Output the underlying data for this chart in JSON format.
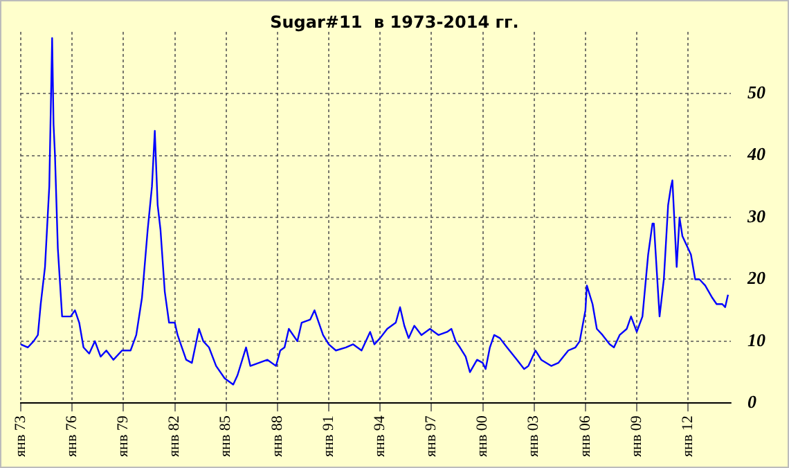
{
  "chart_data": {
    "type": "line",
    "title": "Sugar#11  в 1973-2014 гг.",
    "x": [
      "1973-01",
      "1973-06",
      "1973-10",
      "1974-01",
      "1974-03",
      "1974-06",
      "1974-09",
      "1974-11",
      "1974-12",
      "1975-01",
      "1975-03",
      "1975-06",
      "1975-09",
      "1975-12",
      "1976-03",
      "1976-06",
      "1976-09",
      "1977-01",
      "1977-05",
      "1977-09",
      "1978-01",
      "1978-06",
      "1978-12",
      "1979-06",
      "1979-10",
      "1980-02",
      "1980-06",
      "1980-09",
      "1980-11",
      "1981-01",
      "1981-03",
      "1981-06",
      "1981-09",
      "1982-01",
      "1982-03",
      "1982-06",
      "1982-09",
      "1983-01",
      "1983-06",
      "1983-09",
      "1984-01",
      "1984-06",
      "1984-12",
      "1985-06",
      "1985-09",
      "1986-03",
      "1986-06",
      "1986-12",
      "1987-06",
      "1987-12",
      "1988-03",
      "1988-06",
      "1988-09",
      "1989-03",
      "1989-06",
      "1989-12",
      "1990-03",
      "1990-09",
      "1991-01",
      "1991-06",
      "1992-01",
      "1992-06",
      "1992-12",
      "1993-06",
      "1993-09",
      "1994-01",
      "1994-06",
      "1994-12",
      "1995-03",
      "1995-06",
      "1995-09",
      "1996-01",
      "1996-06",
      "1996-12",
      "1997-06",
      "1997-12",
      "1998-03",
      "1998-06",
      "1998-09",
      "1999-01",
      "1999-04",
      "1999-09",
      "2000-01",
      "2000-03",
      "2000-06",
      "2000-09",
      "2001-01",
      "2001-06",
      "2002-01",
      "2002-06",
      "2002-09",
      "2003-02",
      "2003-06",
      "2004-01",
      "2004-06",
      "2005-01",
      "2005-06",
      "2005-09",
      "2006-01",
      "2006-02",
      "2006-06",
      "2006-09",
      "2007-01",
      "2007-06",
      "2007-09",
      "2008-01",
      "2008-06",
      "2008-09",
      "2009-01",
      "2009-05",
      "2009-09",
      "2009-12",
      "2010-01",
      "2010-05",
      "2010-08",
      "2010-11",
      "2011-01",
      "2011-02",
      "2011-05",
      "2011-07",
      "2011-09",
      "2012-01",
      "2012-03",
      "2012-06",
      "2012-09",
      "2013-01",
      "2013-06",
      "2013-09",
      "2014-01",
      "2014-03",
      "2014-05"
    ],
    "series": [
      {
        "color": "#0000ff",
        "values": [
          9.5,
          9,
          10,
          11,
          16,
          22,
          35,
          59,
          45,
          40,
          25,
          14,
          14,
          14,
          15,
          13,
          9,
          8,
          10,
          7.5,
          8.5,
          7,
          8.5,
          8.5,
          11,
          17,
          28,
          35,
          44,
          32,
          28,
          18,
          13,
          13,
          11,
          9,
          7,
          6.5,
          12,
          10,
          9,
          6,
          4,
          3,
          4.5,
          9,
          6,
          6.5,
          7,
          6,
          8.5,
          9,
          12,
          10,
          13,
          13.5,
          15,
          11,
          9.5,
          8.5,
          9,
          9.5,
          8.5,
          11.5,
          9.5,
          10.5,
          12,
          13,
          15.5,
          12.5,
          10.5,
          12.5,
          11,
          12,
          11,
          11.5,
          12,
          10,
          9,
          7.5,
          5,
          7,
          6.5,
          5.5,
          9,
          11,
          10.5,
          9,
          7,
          5.5,
          6,
          8.5,
          7,
          6,
          6.5,
          8.5,
          9,
          10,
          15,
          19,
          16,
          12,
          11,
          9.5,
          9,
          11,
          12,
          14,
          11.5,
          14,
          24,
          29,
          29,
          14,
          20,
          32,
          35,
          36,
          22,
          30,
          27,
          25,
          24,
          20,
          20,
          19,
          17,
          16,
          16,
          15.5,
          17.5
        ]
      }
    ],
    "xlim": [
      "1973-01",
      "2014-07"
    ],
    "xticks": [
      {
        "value": "1973-01",
        "label": "янв 73"
      },
      {
        "value": "1976-01",
        "label": "янв 76"
      },
      {
        "value": "1979-01",
        "label": "янв 79"
      },
      {
        "value": "1982-01",
        "label": "янв 82"
      },
      {
        "value": "1985-01",
        "label": "янв 85"
      },
      {
        "value": "1988-01",
        "label": "янв 88"
      },
      {
        "value": "1991-01",
        "label": "янв 91"
      },
      {
        "value": "1994-01",
        "label": "янв 94"
      },
      {
        "value": "1997-01",
        "label": "янв 97"
      },
      {
        "value": "2000-01",
        "label": "янв 00"
      },
      {
        "value": "2003-01",
        "label": "янв 03"
      },
      {
        "value": "2006-01",
        "label": "янв 06"
      },
      {
        "value": "2009-01",
        "label": "янв 09"
      },
      {
        "value": "2012-01",
        "label": "янв 12"
      }
    ],
    "ylim": [
      0,
      60
    ],
    "yticks": [
      0,
      10,
      20,
      30,
      40,
      50
    ],
    "grid": true,
    "legend": false,
    "marker": "none",
    "line_style": "solid"
  }
}
